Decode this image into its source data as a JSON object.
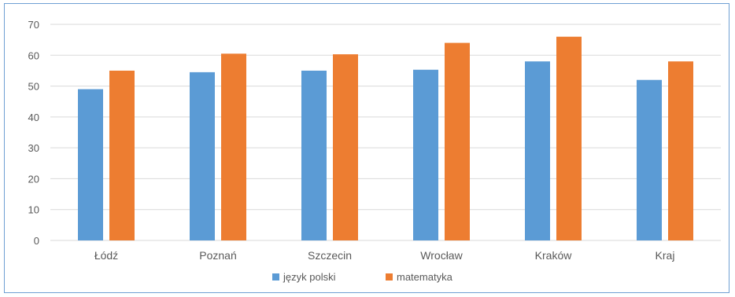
{
  "chart_data": {
    "type": "bar",
    "title": "",
    "xlabel": "",
    "ylabel": "",
    "categories": [
      "Łódź",
      "Poznań",
      "Szczecin",
      "Wrocław",
      "Kraków",
      "Kraj"
    ],
    "series": [
      {
        "name": "język polski",
        "color": "#5b9bd5",
        "values": [
          49,
          54.5,
          55,
          55.3,
          58,
          52
        ]
      },
      {
        "name": "matematyka",
        "color": "#ed7d31",
        "values": [
          55,
          60.5,
          60.3,
          64,
          66,
          58
        ]
      }
    ],
    "ylim": [
      0,
      70
    ],
    "yticks": [
      0,
      10,
      20,
      30,
      40,
      50,
      60,
      70
    ],
    "grid": true,
    "legend_position": "bottom"
  }
}
